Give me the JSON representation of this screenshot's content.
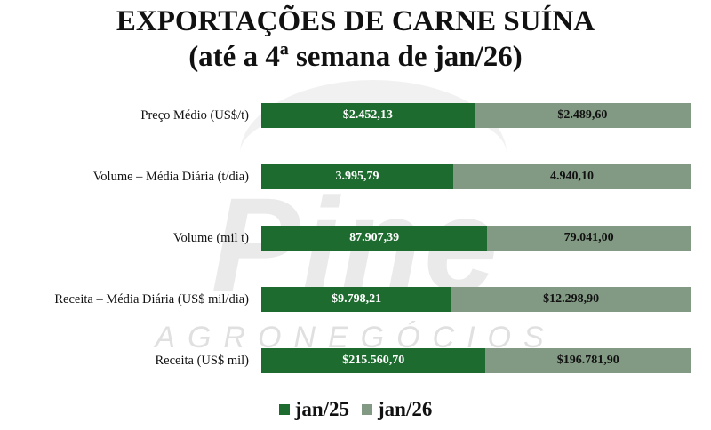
{
  "chart_data": {
    "type": "bar",
    "orientation": "horizontal",
    "stacked": true,
    "normalized_100_percent": true,
    "title": "EXPORTAÇÕES DE CARNE SUÍNA",
    "subtitle": "(até a 4ª semana de jan/26)",
    "categories": [
      "Preço Médio (US$/t)",
      "Volume – Média Diária (t/dia)",
      "Volume (mil t)",
      "Receita – Média Diária (US$ mil/dia)",
      "Receita (US$ mil)"
    ],
    "series": [
      {
        "name": "jan/25",
        "color": "#1e6b2f",
        "values": [
          2452.13,
          3995.79,
          87907.39,
          9798.21,
          215560.7
        ],
        "labels": [
          "$2.452,13",
          "3.995,79",
          "87.907,39",
          "$9.798,21",
          "$215.560,70"
        ]
      },
      {
        "name": "jan/26",
        "color": "#829a83",
        "values": [
          2489.6,
          4940.1,
          79041.0,
          12298.9,
          196781.9
        ],
        "labels": [
          "$2.489,60",
          "4.940,10",
          "79.041,00",
          "$12.298,90",
          "$196.781,90"
        ]
      }
    ],
    "legend": {
      "position": "bottom-center"
    },
    "grid": false
  },
  "watermark": {
    "brand": "Pine",
    "subtitle": "AGRONEGÓCIOS"
  }
}
